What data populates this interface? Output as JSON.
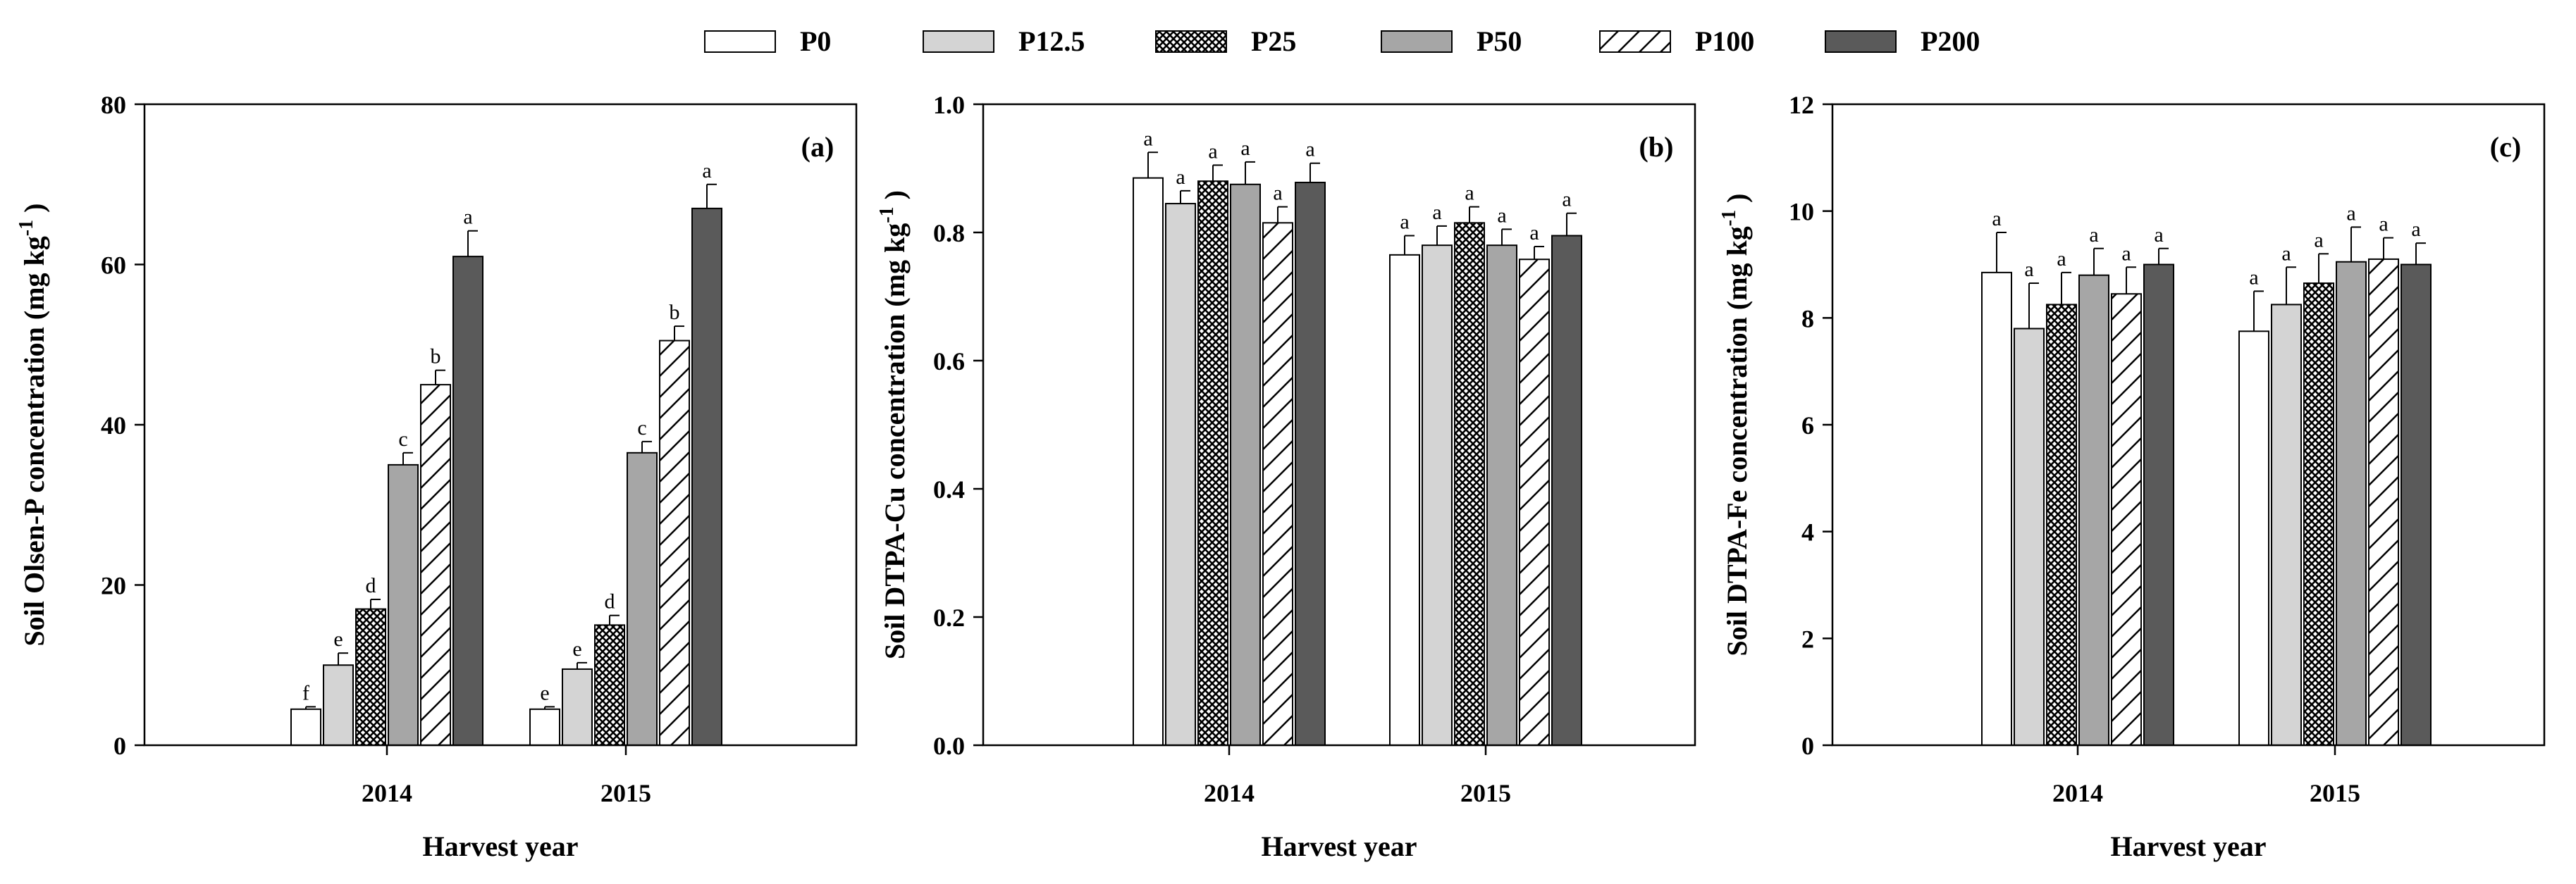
{
  "legend": [
    {
      "label": "P0",
      "fill": "#ffffff",
      "pattern": "none"
    },
    {
      "label": "P12.5",
      "fill": "#d4d4d4",
      "pattern": "none"
    },
    {
      "label": "P25",
      "fill": "#ffffff",
      "pattern": "crosshatch"
    },
    {
      "label": "P50",
      "fill": "#a6a6a6",
      "pattern": "none"
    },
    {
      "label": "P100",
      "fill": "#ffffff",
      "pattern": "diagonal"
    },
    {
      "label": "P200",
      "fill": "#5a5a5a",
      "pattern": "none"
    }
  ],
  "chart_data": [
    {
      "type": "bar",
      "panel": "(a)",
      "categories": [
        "2014",
        "2015"
      ],
      "xlabel": "Harvest year",
      "ylabel_main": "Soil Olsen-P concentration (mg kg",
      "ylabel_sup": "-1",
      "ylabel_end": ")",
      "ylim": [
        0,
        80
      ],
      "yticks": [
        0,
        20,
        40,
        60,
        80
      ],
      "ytick_labels": [
        "0",
        "20",
        "40",
        "60",
        "80"
      ],
      "series": [
        {
          "name": "P0",
          "values": [
            4.5,
            4.5
          ],
          "errors": [
            0.3,
            0.3
          ],
          "letters": [
            "f",
            "e"
          ]
        },
        {
          "name": "P12.5",
          "values": [
            10.0,
            9.5
          ],
          "errors": [
            1.5,
            0.8
          ],
          "letters": [
            "e",
            "e"
          ]
        },
        {
          "name": "P25",
          "values": [
            17.0,
            15.0
          ],
          "errors": [
            1.2,
            1.2
          ],
          "letters": [
            "d",
            "d"
          ]
        },
        {
          "name": "P50",
          "values": [
            35.0,
            36.5
          ],
          "errors": [
            1.5,
            1.4
          ],
          "letters": [
            "c",
            "c"
          ]
        },
        {
          "name": "P100",
          "values": [
            45.0,
            50.5
          ],
          "errors": [
            1.8,
            1.8
          ],
          "letters": [
            "b",
            "b"
          ]
        },
        {
          "name": "P200",
          "values": [
            61.0,
            67.0
          ],
          "errors": [
            3.2,
            3.0
          ],
          "letters": [
            "a",
            "a"
          ]
        }
      ]
    },
    {
      "type": "bar",
      "panel": "(b)",
      "categories": [
        "2014",
        "2015"
      ],
      "xlabel": "Harvest year",
      "ylabel_main": "Soil DTPA-Cu concentration (mg kg",
      "ylabel_sup": "-1",
      "ylabel_end": ")",
      "ylim": [
        0,
        1.0
      ],
      "yticks": [
        0,
        0.2,
        0.4,
        0.6,
        0.8,
        1.0
      ],
      "ytick_labels": [
        "0.0",
        "0.2",
        "0.4",
        "0.6",
        "0.8",
        "1.0"
      ],
      "series": [
        {
          "name": "P0",
          "values": [
            0.885,
            0.765
          ],
          "errors": [
            0.04,
            0.03
          ],
          "letters": [
            "a",
            "a"
          ]
        },
        {
          "name": "P12.5",
          "values": [
            0.845,
            0.78
          ],
          "errors": [
            0.02,
            0.03
          ],
          "letters": [
            "a",
            "a"
          ]
        },
        {
          "name": "P25",
          "values": [
            0.88,
            0.815
          ],
          "errors": [
            0.025,
            0.025
          ],
          "letters": [
            "a",
            "a"
          ]
        },
        {
          "name": "P50",
          "values": [
            0.875,
            0.78
          ],
          "errors": [
            0.035,
            0.025
          ],
          "letters": [
            "a",
            "a"
          ]
        },
        {
          "name": "P100",
          "values": [
            0.815,
            0.758
          ],
          "errors": [
            0.025,
            0.02
          ],
          "letters": [
            "a",
            "a"
          ]
        },
        {
          "name": "P200",
          "values": [
            0.878,
            0.795
          ],
          "errors": [
            0.03,
            0.035
          ],
          "letters": [
            "a",
            "a"
          ]
        }
      ]
    },
    {
      "type": "bar",
      "panel": "(c)",
      "categories": [
        "2014",
        "2015"
      ],
      "xlabel": "Harvest year",
      "ylabel_main": "Soil DTPA-Fe concentration (mg kg",
      "ylabel_sup": "-1",
      "ylabel_end": ")",
      "ylim": [
        0,
        12
      ],
      "yticks": [
        0,
        2,
        4,
        6,
        8,
        10,
        12
      ],
      "ytick_labels": [
        "0",
        "2",
        "4",
        "6",
        "8",
        "10",
        "12"
      ],
      "series": [
        {
          "name": "P0",
          "values": [
            8.85,
            7.75
          ],
          "errors": [
            0.75,
            0.75
          ],
          "letters": [
            "a",
            "a"
          ]
        },
        {
          "name": "P12.5",
          "values": [
            7.8,
            8.25
          ],
          "errors": [
            0.85,
            0.7
          ],
          "letters": [
            "a",
            "a"
          ]
        },
        {
          "name": "P25",
          "values": [
            8.25,
            8.65
          ],
          "errors": [
            0.6,
            0.55
          ],
          "letters": [
            "a",
            "a"
          ]
        },
        {
          "name": "P50",
          "values": [
            8.8,
            9.05
          ],
          "errors": [
            0.5,
            0.65
          ],
          "letters": [
            "a",
            "a"
          ]
        },
        {
          "name": "P100",
          "values": [
            8.45,
            9.1
          ],
          "errors": [
            0.5,
            0.4
          ],
          "letters": [
            "a",
            "a"
          ]
        },
        {
          "name": "P200",
          "values": [
            9.0,
            9.0
          ],
          "errors": [
            0.3,
            0.4
          ],
          "letters": [
            "a",
            "a"
          ]
        }
      ]
    }
  ]
}
